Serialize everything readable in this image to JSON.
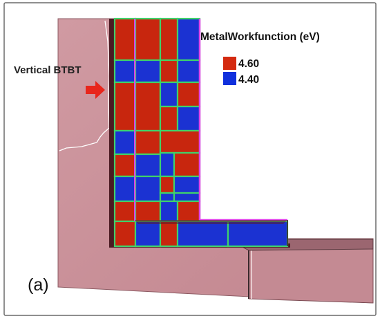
{
  "figure": {
    "panel_label": "(a)",
    "annotation": "Vertical BTBT",
    "annotation_arrow_icon": "right-arrow-icon"
  },
  "legend": {
    "title": "MetalWorkfunction (eV)",
    "items": [
      {
        "label": "4.60",
        "color": "#d42a10"
      },
      {
        "label": "4.40",
        "color": "#1030dd"
      }
    ]
  },
  "colors": {
    "substrate": "#c68a93",
    "substrate_dark": "#a9707a",
    "gate_red": "#c8260e",
    "gate_blue": "#1b32d2",
    "grain_edge": "#3fd26a",
    "magenta_edge": "#e040e8",
    "arrow": "#e8261c"
  }
}
